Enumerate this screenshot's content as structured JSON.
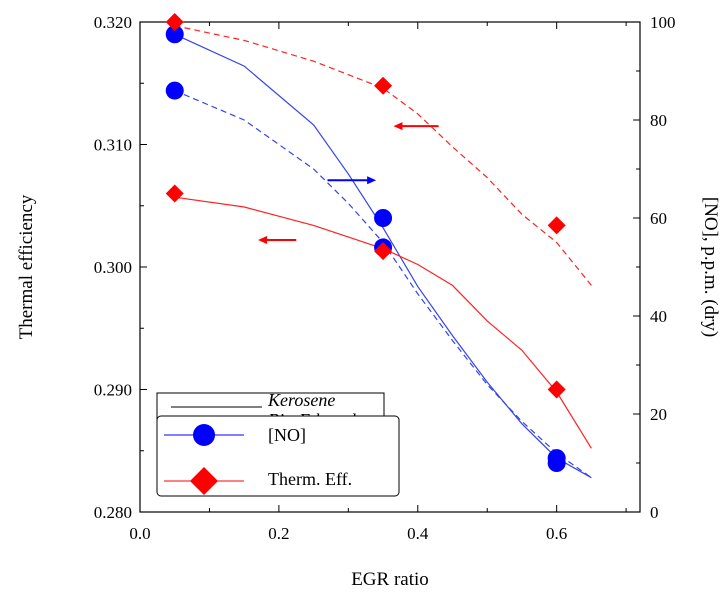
{
  "chart_data": {
    "type": "line",
    "xlabel": "EGR ratio",
    "ylabel": "Thermal efficiency",
    "y2label": "[NO], p.p.m. (dry)",
    "xlim": [
      0,
      0.72
    ],
    "ylim": [
      0.28,
      0.32
    ],
    "y2lim": [
      0,
      100
    ],
    "x_ticks": [
      "0.0",
      "0.2",
      "0.4",
      "0.6"
    ],
    "y_ticks": [
      "0.280",
      "0.290",
      "0.300",
      "0.310",
      "0.320"
    ],
    "y2_ticks": [
      "0",
      "20",
      "40",
      "60",
      "80",
      "100"
    ],
    "grid": false,
    "legend_lines": [
      {
        "label": "Kerosene",
        "style": "solid"
      },
      {
        "label": "Bio-Ethanol",
        "style": "dashed"
      }
    ],
    "legend_markers": [
      {
        "label": "[NO]",
        "marker": "circle",
        "color": "#0000ff"
      },
      {
        "label": "Therm. Eff.",
        "marker": "diamond",
        "color": "#ff0000"
      }
    ],
    "series": [
      {
        "fuel": "Kerosene",
        "quantity": "[NO]",
        "axis": "right",
        "color": "#3344ee",
        "style": "solid",
        "x": [
          0.05,
          0.15,
          0.25,
          0.3,
          0.35,
          0.4,
          0.45,
          0.5,
          0.55,
          0.6,
          0.65
        ],
        "y": [
          97.5,
          91,
          79,
          69,
          58,
          46,
          36,
          26.5,
          18,
          11,
          7
        ]
      },
      {
        "fuel": "Bio-Ethanol",
        "quantity": "[NO]",
        "axis": "right",
        "color": "#3344ee",
        "style": "dashed",
        "x": [
          0.05,
          0.15,
          0.25,
          0.3,
          0.35,
          0.4,
          0.45,
          0.5,
          0.55,
          0.6,
          0.65
        ],
        "y": [
          86,
          80,
          70,
          63,
          55,
          44.5,
          35,
          26,
          18.5,
          12,
          7
        ]
      },
      {
        "fuel": "Kerosene",
        "quantity": "Therm. Eff.",
        "axis": "left",
        "color": "#ff2222",
        "style": "solid",
        "x": [
          0.05,
          0.15,
          0.25,
          0.35,
          0.4,
          0.45,
          0.5,
          0.55,
          0.6,
          0.65
        ],
        "y": [
          0.3057,
          0.3049,
          0.3034,
          0.3015,
          0.3002,
          0.2985,
          0.2956,
          0.2932,
          0.2898,
          0.2852
        ]
      },
      {
        "fuel": "Bio-Ethanol",
        "quantity": "Therm. Eff.",
        "axis": "left",
        "color": "#ff2222",
        "style": "dashed",
        "x": [
          0.05,
          0.15,
          0.25,
          0.35,
          0.4,
          0.45,
          0.5,
          0.55,
          0.6,
          0.65
        ],
        "y": [
          0.3197,
          0.3185,
          0.3168,
          0.3146,
          0.3125,
          0.3098,
          0.3073,
          0.3043,
          0.302,
          0.2985
        ]
      }
    ],
    "points": [
      {
        "quantity": "[NO]",
        "axis": "right",
        "marker": "circle",
        "color": "#0000ff",
        "x": [
          0.05,
          0.05,
          0.35,
          0.35,
          0.6,
          0.6
        ],
        "y": [
          97.5,
          86,
          60,
          54,
          11,
          10
        ]
      },
      {
        "quantity": "Therm. Eff.",
        "axis": "left",
        "marker": "diamond",
        "color": "#ff0000",
        "x": [
          0.05,
          0.05,
          0.35,
          0.35,
          0.6,
          0.6
        ],
        "y": [
          0.32,
          0.306,
          0.3148,
          0.3013,
          0.3034,
          0.29
        ]
      }
    ],
    "annotations": [
      {
        "type": "arrow",
        "direction": "right",
        "color": "#0000ff",
        "axis": "right",
        "x": [
          0.27,
          0.34
        ],
        "y": 67.7
      },
      {
        "type": "arrow",
        "direction": "left",
        "color": "#ff0000",
        "axis": "left",
        "x": [
          0.365,
          0.43
        ],
        "y": 0.3115
      },
      {
        "type": "arrow",
        "direction": "left",
        "color": "#ff0000",
        "axis": "left",
        "x": [
          0.17,
          0.225
        ],
        "y": 0.3022
      }
    ]
  }
}
